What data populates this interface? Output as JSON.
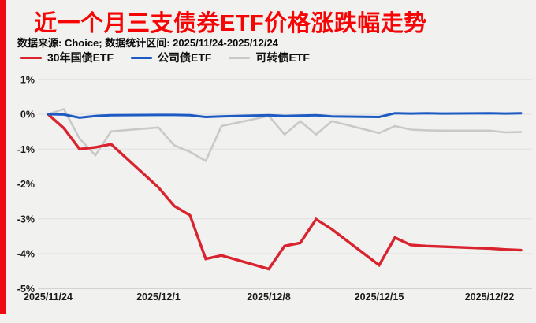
{
  "page": {
    "background": "#f1f1f0",
    "accent_bar_color": "#ef0a14"
  },
  "header": {
    "title": "近一个月三支债券ETF价格涨跌幅走势",
    "title_color": "#f70505",
    "subtitle": "数据来源: Choice; 数据统计区间: 2025/11/24-2025/12/24"
  },
  "chart_data": {
    "type": "line",
    "title": "近一个月三支债券ETF价格涨跌幅走势",
    "grid": true,
    "legend_position": "top-left",
    "x_axis": {
      "start_date": "2025/11/24",
      "end_date": "2025/12/24",
      "tick_labels": [
        "2025/11/24",
        "2025/12/1",
        "2025/12/8",
        "2025/12/15",
        "2025/12/22"
      ]
    },
    "y_axis": {
      "unit": "%",
      "tick_values": [
        1,
        0,
        -1,
        -2,
        -3,
        -4,
        -5
      ],
      "ylim": [
        -5,
        1
      ]
    },
    "dates": [
      "11/24",
      "11/25",
      "11/26",
      "11/27",
      "11/28",
      "12/1",
      "12/2",
      "12/3",
      "12/4",
      "12/5",
      "12/8",
      "12/9",
      "12/10",
      "12/11",
      "12/12",
      "12/15",
      "12/16",
      "12/17",
      "12/18",
      "12/19",
      "12/22",
      "12/23",
      "12/24"
    ],
    "series": [
      {
        "name": "30年国债ETF",
        "color": "#d9232e",
        "values": [
          0.0,
          -0.4,
          -1.0,
          -0.95,
          -0.86,
          -2.1,
          -2.63,
          -2.9,
          -4.15,
          -4.05,
          -4.44,
          -3.78,
          -3.69,
          -3.01,
          -3.3,
          -4.33,
          -3.54,
          -3.75,
          -3.78,
          -3.8,
          -3.85,
          -3.88,
          -3.9
        ]
      },
      {
        "name": "公司债ETF",
        "color": "#1d5ac4",
        "values": [
          0.0,
          -0.01,
          -0.1,
          -0.05,
          -0.03,
          -0.02,
          -0.02,
          -0.03,
          -0.08,
          -0.06,
          -0.03,
          -0.05,
          -0.04,
          -0.03,
          -0.06,
          -0.08,
          0.03,
          0.02,
          0.03,
          0.02,
          0.03,
          0.02,
          0.03
        ]
      },
      {
        "name": "可转债ETF",
        "color": "#c9c9c9",
        "values": [
          0.0,
          0.15,
          -0.7,
          -1.18,
          -0.49,
          -0.38,
          -0.89,
          -1.08,
          -1.34,
          -0.34,
          -0.05,
          -0.58,
          -0.2,
          -0.58,
          -0.2,
          -0.54,
          -0.34,
          -0.44,
          -0.46,
          -0.47,
          -0.47,
          -0.52,
          -0.51
        ]
      }
    ]
  }
}
